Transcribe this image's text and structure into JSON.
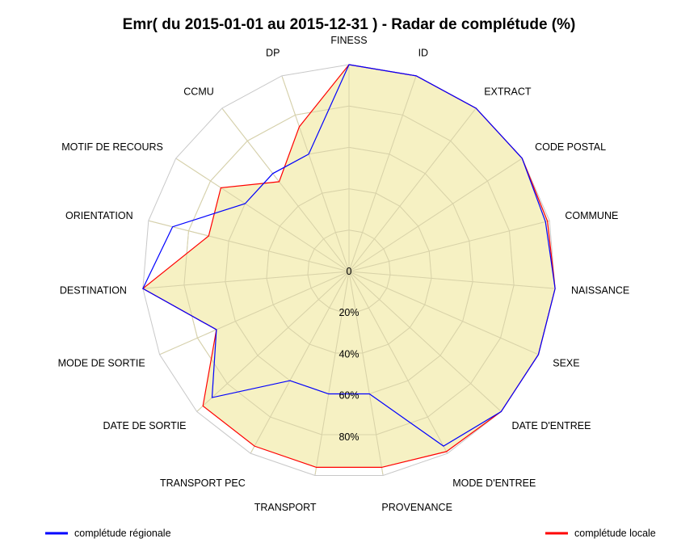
{
  "chart_data": {
    "type": "radar",
    "title": "Emr( du 2015-01-01 au 2015-12-31 ) - Radar de complétude (%)",
    "axes": [
      "FINESS",
      "ID",
      "EXTRACT",
      "CODE POSTAL",
      "COMMUNE",
      "NAISSANCE",
      "SEXE",
      "DATE D'ENTREE",
      "MODE D'ENTREE",
      "PROVENANCE",
      "TRANSPORT",
      "TRANSPORT PEC",
      "DATE DE SORTIE",
      "MODE DE SORTIE",
      "DESTINATION",
      "ORIENTATION",
      "MOTIF DE RECOURS",
      "CCMU",
      "DP"
    ],
    "ring_labels": [
      "0",
      "20%",
      "40%",
      "60%",
      "80%"
    ],
    "rings": [
      0,
      20,
      40,
      60,
      80,
      100
    ],
    "rlim": [
      0,
      100
    ],
    "series": [
      {
        "name": "complétude régionale",
        "color": "#0000ff",
        "values": [
          100,
          100,
          100,
          100,
          98,
          100,
          100,
          100,
          96,
          60,
          60,
          60,
          90,
          70,
          100,
          88,
          60,
          60,
          60
        ]
      },
      {
        "name": "complétude locale",
        "color": "#ff0000",
        "values": [
          100,
          100,
          100,
          100,
          99,
          100,
          100,
          100,
          99,
          96,
          96,
          96,
          96,
          70,
          100,
          70,
          74,
          55,
          74
        ]
      }
    ],
    "fill_color": "#f5eeb8",
    "grid_color": "#c8c8c8",
    "legend_placement": "bottom"
  }
}
